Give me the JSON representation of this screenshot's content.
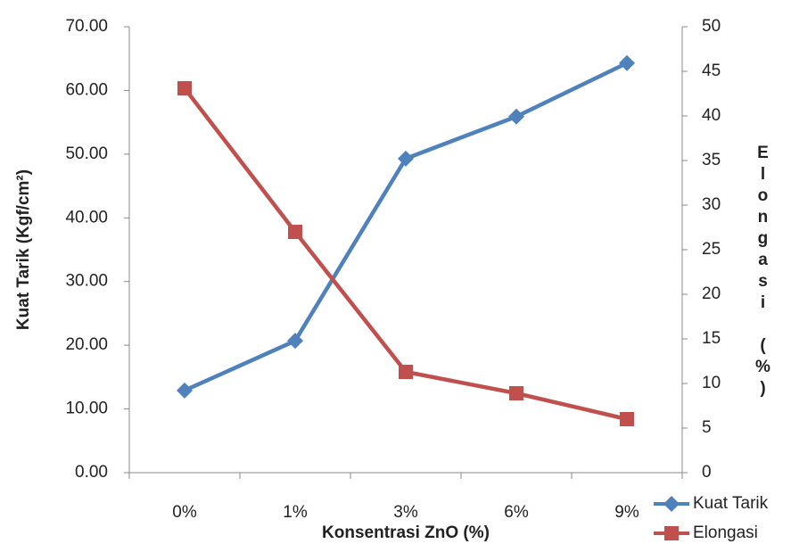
{
  "chart_data": {
    "type": "line",
    "x_label": "Konsentrasi ZnO (%)",
    "y_label": "Kuat Tarik (Kgf/cm²)",
    "y2_label": "Elongasi (%)",
    "categories": [
      "0%",
      "1%",
      "3%",
      "6%",
      "9%"
    ],
    "series": [
      {
        "name": "Kuat Tarik",
        "color": "#4f81bd",
        "marker": "diamond",
        "values": [
          12.9,
          20.7,
          49.3,
          55.9,
          64.3
        ]
      },
      {
        "name": "Elongasi",
        "color": "#c0504d",
        "marker": "square",
        "axis": "y2",
        "values": [
          43.1,
          27,
          11.3,
          8.9,
          6
        ]
      }
    ],
    "ylim": [
      0,
      70
    ],
    "yticks": [
      {
        "value": 0,
        "label": "0.00"
      },
      {
        "value": 10,
        "label": "10.00"
      },
      {
        "value": 20,
        "label": "20.00"
      },
      {
        "value": 30,
        "label": "30.00"
      },
      {
        "value": 40,
        "label": "40.00"
      },
      {
        "value": 50,
        "label": "50.00"
      },
      {
        "value": 60,
        "label": "60.00"
      },
      {
        "value": 70,
        "label": "70.00"
      }
    ],
    "y2lim": [
      0,
      50
    ],
    "y2ticks": [
      0,
      5,
      10,
      15,
      20,
      25,
      30,
      35,
      40,
      45,
      50
    ],
    "grid": false,
    "legend": "bottom-right"
  }
}
